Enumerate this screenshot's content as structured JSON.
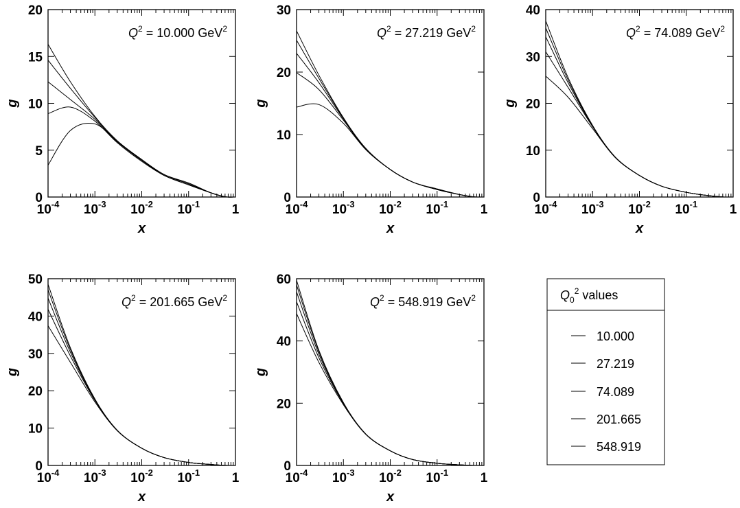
{
  "legend": {
    "title": "Q₀² values",
    "title_parts": {
      "sym": "Q",
      "sub": "0",
      "sup": "2",
      "rest": " values"
    },
    "entries": [
      "10.000",
      "27.219",
      "74.089",
      "201.665",
      "548.919"
    ]
  },
  "chart_data": [
    {
      "type": "line",
      "title": "Q² = 10.000 GeV²",
      "title_parts": {
        "sym": "Q",
        "sup1": "2",
        "mid": " = 10.000 GeV",
        "sup2": "2"
      },
      "xlabel": "x",
      "ylabel": "g",
      "xscale": "log",
      "xlim": [
        0.0001,
        1
      ],
      "ylim": [
        0,
        20
      ],
      "xticks": [
        {
          "base": "10",
          "exp": "-4"
        },
        {
          "base": "10",
          "exp": "-3"
        },
        {
          "base": "10",
          "exp": "-2"
        },
        {
          "base": "10",
          "exp": "-1"
        },
        {
          "base": "1",
          "exp": ""
        }
      ],
      "yticks": [
        "0",
        "5",
        "10",
        "15",
        "20"
      ],
      "x": [
        0.0001,
        0.0003,
        0.001,
        0.003,
        0.01,
        0.03,
        0.1,
        0.3,
        0.6,
        1
      ],
      "series": [
        {
          "values": [
            16.3,
            12.3,
            8.6,
            6.0,
            4.0,
            2.4,
            1.4,
            0.45,
            0.03,
            0
          ]
        },
        {
          "values": [
            14.6,
            11.6,
            8.5,
            6.0,
            4.0,
            2.4,
            1.4,
            0.45,
            0.03,
            0
          ]
        },
        {
          "values": [
            12.3,
            10.4,
            8.3,
            5.9,
            3.9,
            2.3,
            1.3,
            0.45,
            0.03,
            0
          ]
        },
        {
          "values": [
            8.9,
            9.6,
            8.1,
            5.8,
            3.8,
            2.3,
            1.3,
            0.45,
            0.03,
            0
          ]
        },
        {
          "values": [
            3.4,
            7.1,
            7.8,
            5.9,
            3.9,
            2.4,
            1.5,
            0.45,
            0.03,
            0
          ]
        }
      ]
    },
    {
      "type": "line",
      "title": "Q² = 27.219 GeV²",
      "title_parts": {
        "sym": "Q",
        "sup1": "2",
        "mid": " = 27.219 GeV",
        "sup2": "2"
      },
      "xlabel": "x",
      "ylabel": "g",
      "xscale": "log",
      "xlim": [
        0.0001,
        1
      ],
      "ylim": [
        0,
        30
      ],
      "xticks": [
        {
          "base": "10",
          "exp": "-4"
        },
        {
          "base": "10",
          "exp": "-3"
        },
        {
          "base": "10",
          "exp": "-2"
        },
        {
          "base": "10",
          "exp": "-1"
        },
        {
          "base": "1",
          "exp": ""
        }
      ],
      "yticks": [
        "0",
        "10",
        "20",
        "30"
      ],
      "x": [
        0.0001,
        0.0003,
        0.001,
        0.003,
        0.01,
        0.03,
        0.1,
        0.3,
        0.6,
        1
      ],
      "series": [
        {
          "values": [
            26.6,
            19.5,
            12.7,
            7.8,
            4.4,
            2.4,
            1.2,
            0.4,
            0.03,
            0
          ]
        },
        {
          "values": [
            25.1,
            19.0,
            12.6,
            7.7,
            4.4,
            2.4,
            1.2,
            0.4,
            0.03,
            0
          ]
        },
        {
          "values": [
            23.0,
            18.3,
            12.5,
            7.7,
            4.4,
            2.4,
            1.2,
            0.4,
            0.03,
            0
          ]
        },
        {
          "values": [
            19.9,
            17.2,
            12.3,
            7.6,
            4.4,
            2.4,
            1.2,
            0.4,
            0.03,
            0
          ]
        },
        {
          "values": [
            14.4,
            14.8,
            11.8,
            7.6,
            4.4,
            2.4,
            1.3,
            0.4,
            0.03,
            0
          ]
        }
      ]
    },
    {
      "type": "line",
      "title": "Q² = 74.089 GeV²",
      "title_parts": {
        "sym": "Q",
        "sup1": "2",
        "mid": " = 74.089 GeV",
        "sup2": "2"
      },
      "xlabel": "x",
      "ylabel": "g",
      "xscale": "log",
      "xlim": [
        0.0001,
        1
      ],
      "ylim": [
        0,
        40
      ],
      "xticks": [
        {
          "base": "10",
          "exp": "-4"
        },
        {
          "base": "10",
          "exp": "-3"
        },
        {
          "base": "10",
          "exp": "-2"
        },
        {
          "base": "10",
          "exp": "-1"
        },
        {
          "base": "1",
          "exp": ""
        }
      ],
      "yticks": [
        "0",
        "10",
        "20",
        "30",
        "40"
      ],
      "x": [
        0.0001,
        0.0003,
        0.001,
        0.003,
        0.01,
        0.03,
        0.1,
        0.3,
        0.6,
        1
      ],
      "series": [
        {
          "values": [
            37.6,
            25.5,
            15.3,
            8.6,
            4.6,
            2.3,
            1.0,
            0.3,
            0.02,
            0
          ]
        },
        {
          "values": [
            36.1,
            25.0,
            15.2,
            8.6,
            4.6,
            2.3,
            1.0,
            0.3,
            0.02,
            0
          ]
        },
        {
          "values": [
            34.2,
            24.4,
            15.1,
            8.6,
            4.6,
            2.3,
            1.0,
            0.3,
            0.02,
            0
          ]
        },
        {
          "values": [
            31.0,
            23.4,
            15.0,
            8.5,
            4.6,
            2.3,
            1.0,
            0.3,
            0.02,
            0
          ]
        },
        {
          "values": [
            25.8,
            21.3,
            14.6,
            8.5,
            4.6,
            2.3,
            1.0,
            0.3,
            0.02,
            0
          ]
        }
      ]
    },
    {
      "type": "line",
      "title": "Q² = 201.665 GeV²",
      "title_parts": {
        "sym": "Q",
        "sup1": "2",
        "mid": " = 201.665 GeV",
        "sup2": "2"
      },
      "xlabel": "x",
      "ylabel": "g",
      "xscale": "log",
      "xlim": [
        0.0001,
        1
      ],
      "ylim": [
        0,
        50
      ],
      "xticks": [
        {
          "base": "10",
          "exp": "-4"
        },
        {
          "base": "10",
          "exp": "-3"
        },
        {
          "base": "10",
          "exp": "-2"
        },
        {
          "base": "10",
          "exp": "-1"
        },
        {
          "base": "1",
          "exp": ""
        }
      ],
      "yticks": [
        "0",
        "10",
        "20",
        "30",
        "40",
        "50"
      ],
      "x": [
        0.0001,
        0.0003,
        0.001,
        0.003,
        0.01,
        0.03,
        0.1,
        0.3,
        0.6,
        1
      ],
      "series": [
        {
          "values": [
            48.5,
            31.5,
            17.8,
            9.4,
            4.6,
            2.1,
            0.8,
            0.25,
            0.02,
            0
          ]
        },
        {
          "values": [
            47.0,
            31.0,
            17.7,
            9.4,
            4.6,
            2.1,
            0.8,
            0.25,
            0.02,
            0
          ]
        },
        {
          "values": [
            44.8,
            30.3,
            17.6,
            9.4,
            4.6,
            2.1,
            0.8,
            0.25,
            0.02,
            0
          ]
        },
        {
          "values": [
            41.8,
            29.3,
            17.4,
            9.3,
            4.6,
            2.1,
            0.8,
            0.25,
            0.02,
            0
          ]
        },
        {
          "values": [
            37.4,
            27.6,
            17.0,
            9.3,
            4.6,
            2.1,
            0.8,
            0.25,
            0.02,
            0
          ]
        }
      ]
    },
    {
      "type": "line",
      "title": "Q² = 548.919 GeV²",
      "title_parts": {
        "sym": "Q",
        "sup1": "2",
        "mid": " = 548.919 GeV",
        "sup2": "2"
      },
      "xlabel": "x",
      "ylabel": "g",
      "xscale": "log",
      "xlim": [
        0.0001,
        1
      ],
      "ylim": [
        0,
        60
      ],
      "xticks": [
        {
          "base": "10",
          "exp": "-4"
        },
        {
          "base": "10",
          "exp": "-3"
        },
        {
          "base": "10",
          "exp": "-2"
        },
        {
          "base": "10",
          "exp": "-1"
        },
        {
          "base": "1",
          "exp": ""
        }
      ],
      "yticks": [
        "0",
        "20",
        "40",
        "60"
      ],
      "x": [
        0.0001,
        0.0003,
        0.001,
        0.003,
        0.01,
        0.03,
        0.1,
        0.3,
        0.6,
        1
      ],
      "series": [
        {
          "values": [
            59.5,
            37.0,
            20.2,
            10.1,
            4.7,
            1.9,
            0.7,
            0.2,
            0.01,
            0
          ]
        },
        {
          "values": [
            58.0,
            36.5,
            20.1,
            10.1,
            4.7,
            1.9,
            0.7,
            0.2,
            0.01,
            0
          ]
        },
        {
          "values": [
            55.8,
            35.7,
            20.0,
            10.1,
            4.7,
            1.9,
            0.7,
            0.2,
            0.01,
            0
          ]
        },
        {
          "values": [
            52.6,
            34.6,
            19.8,
            10.0,
            4.7,
            1.9,
            0.7,
            0.2,
            0.01,
            0
          ]
        },
        {
          "values": [
            48.8,
            33.1,
            19.5,
            10.0,
            4.7,
            1.9,
            0.7,
            0.2,
            0.01,
            0
          ]
        }
      ]
    }
  ]
}
